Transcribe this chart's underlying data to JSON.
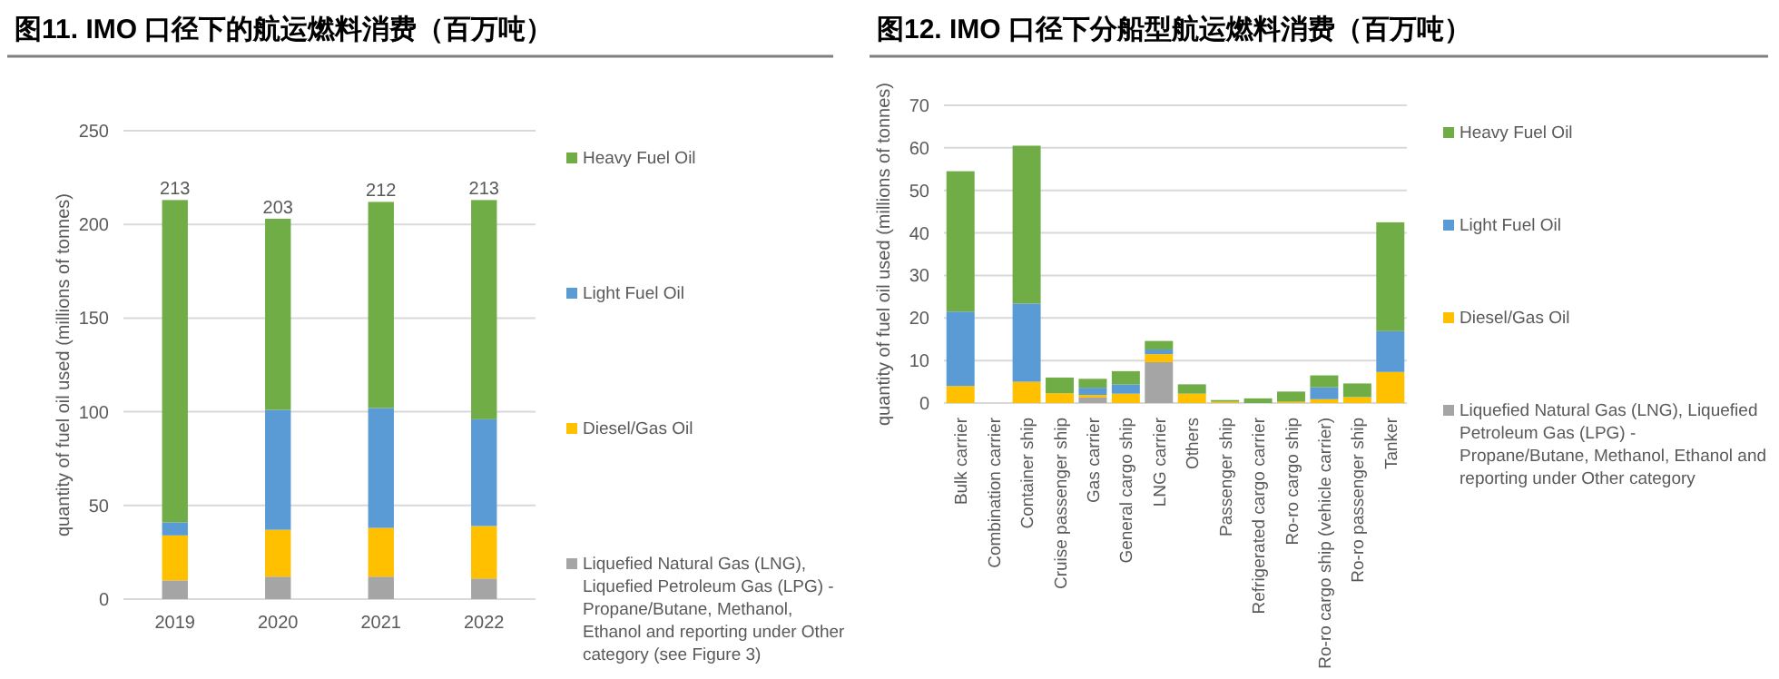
{
  "chart_data": [
    {
      "type": "bar",
      "title": "图11. IMO 口径下的航运燃料消费（百万吨）",
      "ylabel": "quantity of fuel oil used (millions of tonnes)",
      "categories": [
        "2019",
        "2020",
        "2021",
        "2022"
      ],
      "stacked": true,
      "ylim": [
        0,
        250
      ],
      "yticks": [
        0,
        50,
        100,
        150,
        200,
        250
      ],
      "grid": "y",
      "legend": "right",
      "totals": [
        "213",
        "203",
        "212",
        "213"
      ],
      "series": [
        {
          "name": "Liquefied Natural Gas (LNG), Liquefied Petroleum Gas (LPG) - Propane/Butane, Methanol, Ethanol and reporting under Other category (see Figure 3)",
          "color": "#a5a5a5",
          "values": [
            10,
            12,
            12,
            11
          ]
        },
        {
          "name": "Diesel/Gas Oil",
          "color": "#ffc000",
          "values": [
            24,
            25,
            26,
            28
          ]
        },
        {
          "name": "Light Fuel Oil",
          "color": "#5b9bd5",
          "values": [
            7,
            64,
            64,
            57
          ]
        },
        {
          "name": "Heavy Fuel Oil",
          "color": "#70ad47",
          "values": [
            172,
            102,
            110,
            117
          ]
        }
      ]
    },
    {
      "type": "bar",
      "title": "图12. IMO 口径下分船型航运燃料消费（百万吨）",
      "ylabel": "quantity of fuel oil used (millions of tonnes)",
      "categories": [
        "Bulk carrier",
        "Combination carrier",
        "Container ship",
        "Cruise passenger ship",
        "Gas carrier",
        "General cargo ship",
        "LNG carrier",
        "Others",
        "Passenger ship",
        "Refrigerated cargo carrier",
        "Ro-ro cargo ship",
        "Ro-ro cargo ship (vehicle carrier)",
        "Ro-ro passenger ship",
        "Tanker"
      ],
      "stacked": true,
      "ylim": [
        0,
        70
      ],
      "yticks": [
        0,
        10,
        20,
        30,
        40,
        50,
        60,
        70
      ],
      "grid": "y",
      "legend": "right",
      "series": [
        {
          "name": "Liquefied Natural Gas (LNG), Liquefied Petroleum Gas (LPG) - Propane/Butane, Methanol, Ethanol and reporting under Other category",
          "color": "#a5a5a5",
          "values": [
            0,
            0,
            0,
            0,
            1.3,
            0,
            9.6,
            0,
            0,
            0,
            0,
            0,
            0,
            0
          ]
        },
        {
          "name": "Diesel/Gas Oil",
          "color": "#ffc000",
          "values": [
            4,
            0,
            5,
            2.3,
            0.6,
            2.2,
            1.9,
            2.2,
            0.3,
            0,
            0.3,
            0.9,
            1.4,
            7.3
          ]
        },
        {
          "name": "Light Fuel Oil",
          "color": "#5b9bd5",
          "values": [
            17.5,
            0,
            18.4,
            0,
            1.7,
            2.2,
            1.1,
            0,
            0,
            0,
            0,
            2.8,
            0,
            9.6
          ]
        },
        {
          "name": "Heavy Fuel Oil",
          "color": "#70ad47",
          "values": [
            33,
            0,
            37.1,
            3.7,
            2.1,
            3.1,
            2,
            2.2,
            0.4,
            1.1,
            2.4,
            2.8,
            3.2,
            25.6
          ]
        }
      ]
    }
  ]
}
